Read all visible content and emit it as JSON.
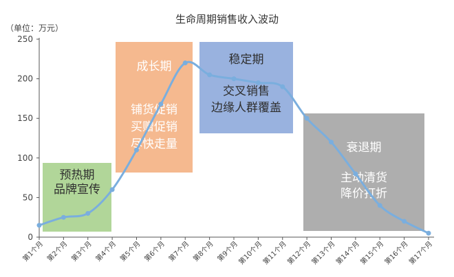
{
  "chart_data": {
    "type": "line",
    "title": "生命周期销售收入波动",
    "unit_label": "（单位：万元）",
    "ylim": [
      0,
      250
    ],
    "yticks": [
      0,
      50,
      100,
      150,
      200,
      250
    ],
    "grid": false,
    "categories": [
      "第1个月",
      "第2个月",
      "第3个月",
      "第4个月",
      "第5个月",
      "第6个月",
      "第7个月",
      "第8个月",
      "第9个月",
      "第10个月",
      "第11个月",
      "第12个月",
      "第13个月",
      "第14个月",
      "第15个月",
      "第16个月",
      "第17个月"
    ],
    "values": [
      15,
      25,
      30,
      60,
      110,
      168,
      220,
      205,
      200,
      195,
      190,
      150,
      120,
      80,
      40,
      20,
      5
    ],
    "line_color": "#7aaede",
    "phases": [
      {
        "title": "预热期",
        "lines": [
          "品牌宣传"
        ],
        "color": "#a9d18e",
        "text_color": "#2f2f2f"
      },
      {
        "title": "成长期",
        "lines": [
          "铺货促销",
          "买赠促销",
          "尽快走量"
        ],
        "color": "#f4b183",
        "text_color": "#ffffff"
      },
      {
        "title": "稳定期",
        "lines": [
          "交叉销售",
          "边缘人群覆盖"
        ],
        "color": "#8eaadb",
        "text_color": "#2f2f2f"
      },
      {
        "title": "衰退期",
        "lines": [
          "主动清货",
          "降价打折"
        ],
        "color": "#a5a5a5",
        "text_color": "#ffffff"
      }
    ]
  }
}
